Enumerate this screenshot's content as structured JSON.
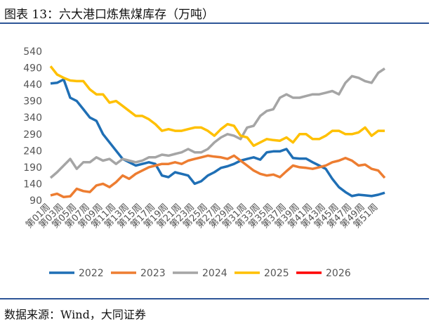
{
  "header": {
    "title": "图表 13：六大港口炼焦煤库存（万吨）"
  },
  "footer": {
    "source": "数据来源：Wind，大同证券"
  },
  "chart_data": {
    "type": "line",
    "categories": [
      "第01周",
      null,
      "第03周",
      null,
      "第05周",
      null,
      "第07周",
      null,
      "第09周",
      null,
      "第11周",
      null,
      "第13周",
      null,
      "第15周",
      null,
      "第17周",
      null,
      "第19周",
      null,
      "第21周",
      null,
      "第23周",
      null,
      "第25周",
      null,
      "第27周",
      null,
      "第29周",
      null,
      "第31周",
      null,
      "第33周",
      null,
      "第35周",
      null,
      "第37周",
      null,
      "第39周",
      null,
      "第41周",
      null,
      "第43周",
      null,
      "第45周",
      null,
      "第47周",
      null,
      "第49周",
      null,
      "第51周",
      null
    ],
    "ylim": [
      90,
      540
    ],
    "yticks": [
      90,
      140,
      190,
      240,
      290,
      340,
      390,
      440,
      490,
      540
    ],
    "grid": false,
    "legend": "bottom",
    "series": [
      {
        "name": "2022",
        "color": "#1f6fb5",
        "values": [
          443,
          445,
          455,
          400,
          390,
          365,
          340,
          330,
          290,
          265,
          240,
          215,
          205,
          195,
          200,
          205,
          200,
          165,
          160,
          175,
          170,
          165,
          140,
          148,
          165,
          175,
          188,
          193,
          200,
          210,
          215,
          220,
          213,
          235,
          238,
          238,
          245,
          218,
          216,
          216,
          205,
          195,
          185,
          155,
          130,
          115,
          103,
          107,
          105,
          103,
          107,
          113
        ]
      },
      {
        "name": "2023",
        "color": "#ed7d31",
        "values": [
          105,
          110,
          100,
          102,
          125,
          118,
          115,
          135,
          140,
          130,
          145,
          165,
          155,
          170,
          180,
          190,
          195,
          200,
          200,
          205,
          200,
          210,
          215,
          220,
          225,
          222,
          220,
          215,
          225,
          210,
          195,
          180,
          170,
          165,
          168,
          160,
          178,
          195,
          190,
          188,
          185,
          190,
          195,
          205,
          210,
          218,
          210,
          195,
          198,
          185,
          180,
          158
        ]
      },
      {
        "name": "2024",
        "color": "#a5a5a5",
        "values": [
          158,
          175,
          195,
          215,
          185,
          205,
          205,
          220,
          210,
          215,
          200,
          215,
          210,
          205,
          210,
          220,
          220,
          228,
          225,
          230,
          235,
          245,
          235,
          235,
          245,
          265,
          280,
          290,
          285,
          275,
          310,
          315,
          345,
          360,
          365,
          400,
          410,
          400,
          400,
          405,
          410,
          410,
          415,
          420,
          410,
          445,
          465,
          460,
          450,
          445,
          475,
          488
        ]
      },
      {
        "name": "2025",
        "color": "#ffc000",
        "values": [
          495,
          470,
          460,
          452,
          450,
          450,
          425,
          410,
          410,
          385,
          390,
          375,
          360,
          345,
          345,
          335,
          320,
          300,
          305,
          300,
          300,
          305,
          310,
          310,
          300,
          285,
          305,
          320,
          315,
          285,
          280,
          255,
          265,
          275,
          272,
          270,
          280,
          265,
          290,
          290,
          275,
          275,
          285,
          300,
          300,
          290,
          290,
          295,
          310,
          285,
          300,
          300
        ]
      },
      {
        "name": "2026",
        "color": "#ff0000",
        "values": [
          null,
          null,
          null,
          null,
          null,
          null,
          null,
          null,
          null,
          null,
          null,
          null,
          null,
          null,
          null,
          null,
          null,
          null,
          null,
          null,
          null,
          null,
          null,
          null,
          null,
          null,
          null,
          null,
          null,
          null,
          null,
          null,
          null,
          null,
          null,
          null,
          null,
          null,
          null,
          null,
          null,
          null,
          null,
          null,
          null,
          null,
          null,
          null,
          null,
          null,
          null,
          null
        ]
      }
    ]
  }
}
